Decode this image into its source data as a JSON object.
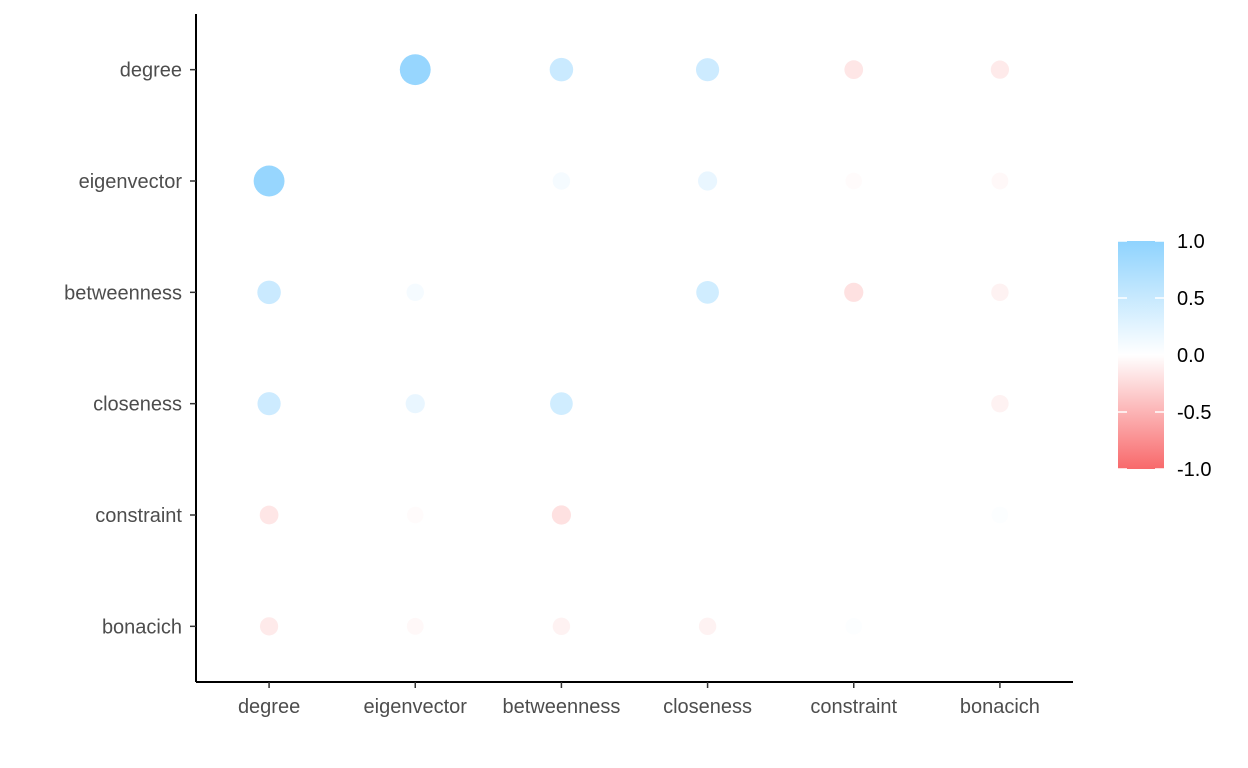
{
  "chart_data": {
    "type": "scatter",
    "subtype": "correlation-matrix",
    "title": "",
    "xlabel": "",
    "ylabel": "",
    "x_categories": [
      "degree",
      "eigenvector",
      "betweenness",
      "closeness",
      "constraint",
      "bonacich"
    ],
    "y_categories": [
      "degree",
      "eigenvector",
      "betweenness",
      "closeness",
      "constraint",
      "bonacich"
    ],
    "matrix": [
      [
        null,
        0.93,
        0.47,
        0.45,
        -0.17,
        -0.14
      ],
      [
        0.93,
        null,
        0.09,
        0.2,
        -0.03,
        -0.05
      ],
      [
        0.47,
        0.09,
        null,
        0.42,
        -0.2,
        -0.09
      ],
      [
        0.45,
        0.2,
        0.42,
        null,
        null,
        -0.09
      ],
      [
        -0.17,
        -0.03,
        -0.2,
        null,
        null,
        0.03
      ],
      [
        -0.14,
        -0.05,
        -0.09,
        -0.09,
        0.03,
        null
      ]
    ],
    "color_scale": {
      "range": [
        -1.0,
        1.0
      ],
      "low": "#f8696b",
      "mid": "#ffffff",
      "high": "#8fd3fe",
      "ticks": [
        "1.0",
        "0.5",
        "0.0",
        "-0.5",
        "-1.0"
      ],
      "tick_values": [
        1.0,
        0.5,
        0.0,
        -0.5,
        -1.0
      ]
    },
    "grid": false,
    "legend_position": "right"
  }
}
